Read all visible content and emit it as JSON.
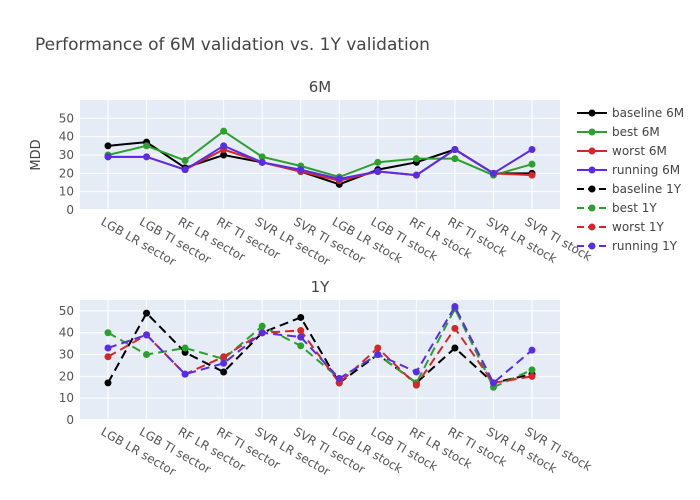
{
  "chart_data": {
    "type": "line",
    "title": "Performance of 6M validation vs. 1Y validation",
    "categories": [
      "LGB LR sector",
      "LGB TI sector",
      "RF LR sector",
      "RF TI sector",
      "SVR LR sector",
      "SVR TI sector",
      "LGB LR stock",
      "LGB TI stock",
      "RF LR stock",
      "RF TI stock",
      "SVR LR stock",
      "SVR TI stock"
    ],
    "subplots": [
      {
        "title": "6M",
        "ylabel": "MDD",
        "ylim": [
          0,
          60
        ],
        "yticks": [
          0,
          10,
          20,
          30,
          40,
          50
        ],
        "series": [
          {
            "name": "baseline 6M",
            "color": "#000000",
            "dash": "solid",
            "values": [
              35,
              37,
              23,
              30,
              26,
              21,
              14,
              22,
              26,
              33,
              20,
              20
            ]
          },
          {
            "name": "best 6M",
            "color": "#2ca02c",
            "dash": "solid",
            "values": [
              30,
              35,
              27,
              43,
              29,
              24,
              18,
              26,
              28,
              28,
              19,
              25
            ]
          },
          {
            "name": "worst 6M",
            "color": "#d62728",
            "dash": "solid",
            "values": [
              29,
              29,
              22,
              33,
              26,
              21,
              16,
              21,
              19,
              33,
              20,
              19
            ]
          },
          {
            "name": "running 6M",
            "color": "#5a2ce6",
            "dash": "solid",
            "values": [
              29,
              29,
              22,
              35,
              26,
              22,
              17,
              21,
              19,
              33,
              20,
              33
            ]
          }
        ]
      },
      {
        "title": "1Y",
        "ylabel": "",
        "ylim": [
          0,
          55
        ],
        "yticks": [
          0,
          10,
          20,
          30,
          40,
          50
        ],
        "series": [
          {
            "name": "baseline 1Y",
            "color": "#000000",
            "dash": "dash",
            "values": [
              17,
              49,
              31,
              22,
              40,
              47,
              17,
              30,
              17,
              33,
              17,
              21
            ]
          },
          {
            "name": "best 1Y",
            "color": "#2ca02c",
            "dash": "dash",
            "values": [
              40,
              30,
              33,
              28,
              43,
              34,
              19,
              30,
              17,
              51,
              15,
              23
            ]
          },
          {
            "name": "worst 1Y",
            "color": "#d62728",
            "dash": "dash",
            "values": [
              29,
              39,
              21,
              29,
              40,
              41,
              17,
              33,
              16,
              42,
              17,
              20
            ]
          },
          {
            "name": "running 1Y",
            "color": "#5a2ce6",
            "dash": "dash",
            "values": [
              33,
              39,
              21,
              26,
              40,
              38,
              19,
              30,
              22,
              52,
              17,
              32
            ]
          }
        ]
      }
    ],
    "legend_position": "right",
    "grid": true
  }
}
